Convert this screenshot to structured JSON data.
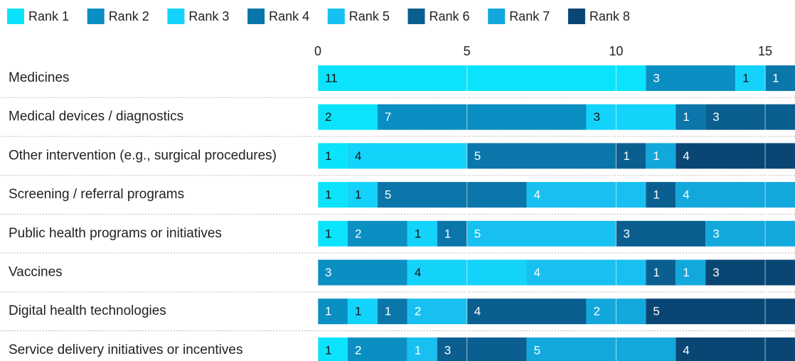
{
  "chart_data": {
    "type": "stacked_barh",
    "categories": [
      "Medicines",
      "Medical devices / diagnostics",
      "Other intervention (e.g., surgical procedures)",
      "Screening / referral programs",
      "Public health programs or initiatives",
      "Vaccines",
      "Digital health technologies",
      "Service delivery initiatives or incentives"
    ],
    "series": [
      {
        "name": "Rank 1",
        "color": "#0be3fc",
        "label_color": "#111111",
        "values": [
          11,
          2,
          1,
          1,
          1,
          0,
          0,
          1
        ]
      },
      {
        "name": "Rank 2",
        "color": "#0a8fc2",
        "label_color": "#ffffff",
        "values": [
          3,
          7,
          0,
          0,
          2,
          3,
          1,
          2
        ]
      },
      {
        "name": "Rank 3",
        "color": "#13d3fb",
        "label_color": "#111111",
        "values": [
          1,
          3,
          4,
          1,
          1,
          4,
          1,
          0
        ]
      },
      {
        "name": "Rank 4",
        "color": "#0a76a9",
        "label_color": "#ffffff",
        "values": [
          1,
          1,
          5,
          5,
          1,
          0,
          1,
          0
        ]
      },
      {
        "name": "Rank 5",
        "color": "#17c0f0",
        "label_color": "#ffffff",
        "values": [
          0,
          0,
          0,
          4,
          5,
          4,
          2,
          1
        ]
      },
      {
        "name": "Rank 6",
        "color": "#0a5f90",
        "label_color": "#ffffff",
        "values": [
          0,
          3,
          1,
          1,
          3,
          1,
          4,
          3
        ]
      },
      {
        "name": "Rank 7",
        "color": "#13a8dc",
        "label_color": "#ffffff",
        "values": [
          0,
          0,
          1,
          4,
          3,
          1,
          2,
          5
        ]
      },
      {
        "name": "Rank 8",
        "color": "#0a4673",
        "label_color": "#ffffff",
        "values": [
          0,
          0,
          4,
          0,
          0,
          3,
          5,
          4
        ]
      }
    ],
    "xlim": [
      0,
      16
    ],
    "xticks": [
      0,
      5,
      10,
      15
    ],
    "grid": true
  }
}
